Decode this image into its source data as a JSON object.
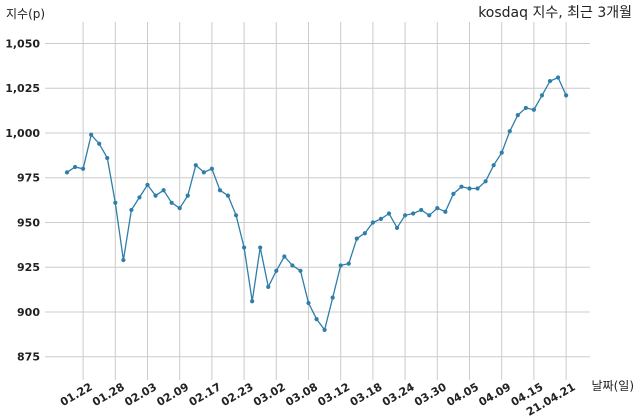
{
  "chart_data": {
    "type": "line",
    "title": "kosdaq 지수, 최근 3개월",
    "ylabel": "지수(p)",
    "xlabel": "날짜(일)",
    "ylim": [
      862,
      1062
    ],
    "yticks": [
      "1,050",
      "1,025",
      "1,000",
      "975",
      "950",
      "925",
      "900",
      "875"
    ],
    "ytick_values": [
      1050,
      1025,
      1000,
      975,
      950,
      925,
      900,
      875
    ],
    "xticks": [
      "01.22",
      "01.28",
      "02.03",
      "02.09",
      "02.17",
      "02.23",
      "03.02",
      "03.08",
      "03.12",
      "03.18",
      "03.24",
      "03.30",
      "04.05",
      "04.09",
      "04.15",
      "21.04.21"
    ],
    "xtick_indices": [
      2,
      6,
      10,
      14,
      18,
      22,
      26,
      30,
      34,
      38,
      42,
      46,
      50,
      54,
      58,
      62
    ],
    "grid": true,
    "series": [
      {
        "color": "#2e7ea9",
        "values": [
          978,
          981,
          980,
          999,
          994,
          986,
          961,
          929,
          957,
          964,
          971,
          965,
          968,
          961,
          958,
          965,
          982,
          978,
          980,
          968,
          965,
          954,
          936,
          906,
          936,
          914,
          923,
          931,
          926,
          923,
          905,
          896,
          890,
          908,
          926,
          927,
          941,
          944,
          950,
          952,
          955,
          947,
          954,
          955,
          957,
          954,
          958,
          956,
          966,
          970,
          969,
          969,
          973,
          982,
          989,
          1001,
          1010,
          1014,
          1013,
          1021,
          1029,
          1031,
          1021
        ]
      }
    ]
  }
}
